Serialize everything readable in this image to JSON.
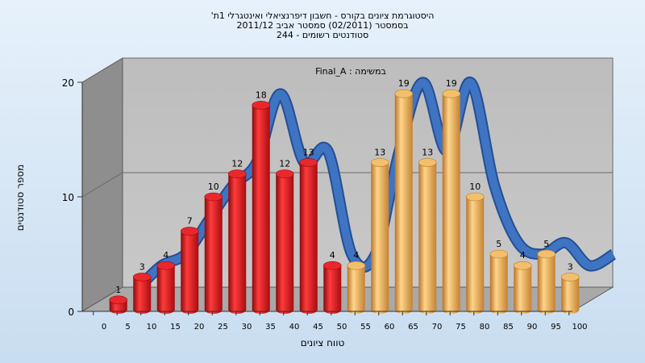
{
  "chart_data": {
    "type": "bar",
    "title_lines": [
      "היסטוגרמת ציונים בקורס - חשבון דיפרנציאלי ואינטגרלי 1ת'",
      "בסמסטר  (02/2011)  סמסטר אביב 2011/12",
      "סטודנטים רשומים - 244"
    ],
    "series_label": "במשימה : Final_A",
    "xlabel": "טווח ציונים",
    "ylabel": "מספר סטודנטים",
    "ylim": [
      0,
      20
    ],
    "yticks": [
      "0",
      "10",
      "20"
    ],
    "xticks": [
      "0",
      "5",
      "10",
      "15",
      "20",
      "25",
      "30",
      "35",
      "40",
      "45",
      "50",
      "55",
      "60",
      "65",
      "70",
      "75",
      "80",
      "85",
      "90",
      "95",
      "100"
    ],
    "bars": [
      {
        "value": 1,
        "color": "red"
      },
      {
        "value": 3,
        "color": "red"
      },
      {
        "value": 4,
        "color": "red"
      },
      {
        "value": 7,
        "color": "red"
      },
      {
        "value": 10,
        "color": "red"
      },
      {
        "value": 12,
        "color": "red"
      },
      {
        "value": 18,
        "color": "red"
      },
      {
        "value": 12,
        "color": "red"
      },
      {
        "value": 13,
        "color": "red"
      },
      {
        "value": 4,
        "color": "red"
      },
      {
        "value": 4,
        "color": "orange"
      },
      {
        "value": 13,
        "color": "orange"
      },
      {
        "value": 19,
        "color": "orange"
      },
      {
        "value": 13,
        "color": "orange"
      },
      {
        "value": 19,
        "color": "orange"
      },
      {
        "value": 10,
        "color": "orange"
      },
      {
        "value": 5,
        "color": "orange"
      },
      {
        "value": 4,
        "color": "orange"
      },
      {
        "value": 5,
        "color": "orange"
      },
      {
        "value": 3,
        "color": "orange"
      }
    ],
    "colors": {
      "red": "#d81418",
      "orange": "#e8a23c",
      "curve": "#3f74c2"
    },
    "grid": true,
    "legend": "none"
  }
}
